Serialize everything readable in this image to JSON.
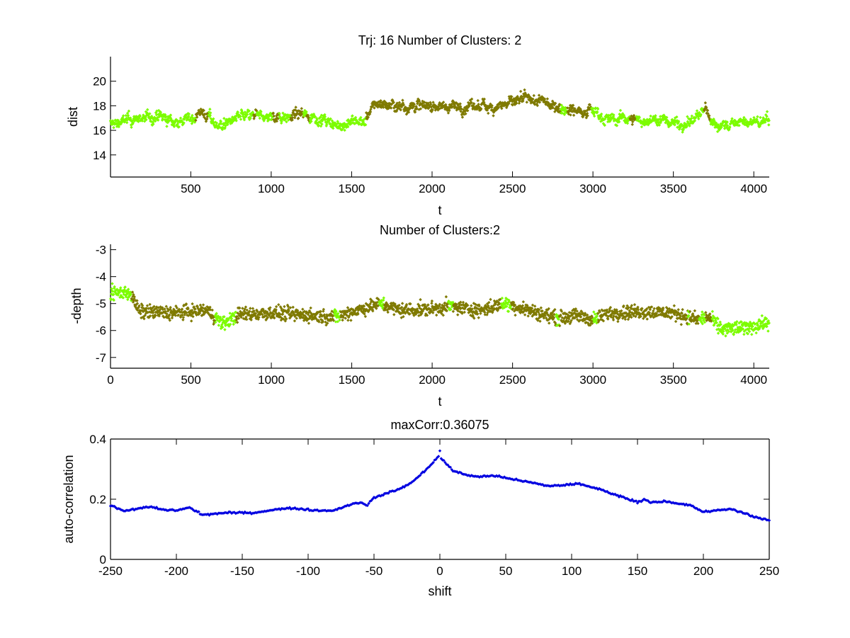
{
  "chart_data": [
    {
      "type": "scatter",
      "title": "Trj: 16 Number of Clusters: 2",
      "xlabel": "t",
      "ylabel": "dist",
      "xlim": [
        1,
        4096
      ],
      "ylim": [
        12.2,
        22
      ],
      "xticks": [
        500,
        1000,
        1500,
        2000,
        2500,
        3000,
        3500,
        4000
      ],
      "yticks": [
        14,
        16,
        18,
        20
      ],
      "grid": false,
      "colors": {
        "cluster1": "#7cfc00",
        "cluster2": "#7f7a00"
      },
      "noise": 0.22,
      "anchors_t": [
        0,
        100,
        200,
        300,
        400,
        500,
        560,
        650,
        700,
        800,
        900,
        1000,
        1100,
        1200,
        1300,
        1400,
        1500,
        1580,
        1650,
        1800,
        2000,
        2200,
        2400,
        2600,
        2700,
        2800,
        2900,
        3000,
        3100,
        3200,
        3300,
        3400,
        3500,
        3600,
        3700,
        3760,
        3900,
        4096
      ],
      "anchors_value": [
        16.5,
        16.8,
        17.0,
        17.1,
        16.7,
        16.9,
        17.6,
        16.6,
        16.4,
        17.1,
        17.1,
        17.1,
        17.2,
        17.3,
        17.0,
        16.3,
        16.7,
        16.7,
        18.2,
        18.0,
        18.0,
        17.9,
        18.0,
        18.5,
        18.3,
        17.9,
        17.6,
        17.7,
        16.8,
        17.0,
        16.8,
        16.9,
        16.6,
        16.6,
        17.7,
        16.4,
        16.6,
        16.7
      ],
      "cluster2_ranges": [
        [
          530,
          610
        ],
        [
          890,
          910
        ],
        [
          1010,
          1050
        ],
        [
          1120,
          1200
        ],
        [
          1220,
          1240
        ],
        [
          1590,
          2800
        ],
        [
          2840,
          2990
        ],
        [
          3230,
          3270
        ],
        [
          3690,
          3730
        ]
      ]
    },
    {
      "type": "scatter",
      "title": "Number of Clusters:2",
      "xlabel": "t",
      "ylabel": "-depth",
      "xlim": [
        0,
        4096
      ],
      "ylim": [
        -7.4,
        -2.8
      ],
      "xticks": [
        0,
        500,
        1000,
        1500,
        2000,
        2500,
        3000,
        3500,
        4000
      ],
      "yticks": [
        -7,
        -6,
        -5,
        -4,
        -3
      ],
      "grid": false,
      "colors": {
        "cluster1": "#7cfc00",
        "cluster2": "#7f7a00"
      },
      "noise": 0.18,
      "anchors_t": [
        0,
        120,
        180,
        400,
        600,
        700,
        800,
        1000,
        1400,
        1500,
        1680,
        1800,
        2000,
        2100,
        2300,
        2450,
        2600,
        2780,
        2900,
        3000,
        3100,
        3300,
        3500,
        3650,
        3720,
        3800,
        3950,
        4096
      ],
      "anchors_value": [
        -4.6,
        -4.6,
        -5.3,
        -5.35,
        -5.25,
        -5.75,
        -5.4,
        -5.35,
        -5.5,
        -5.3,
        -5.0,
        -5.25,
        -5.2,
        -5.1,
        -5.25,
        -5.0,
        -5.25,
        -5.55,
        -5.45,
        -5.6,
        -5.35,
        -5.3,
        -5.35,
        -5.6,
        -5.5,
        -5.95,
        -5.9,
        -5.7
      ],
      "cluster1_ranges": [
        [
          0,
          130
        ],
        [
          650,
          780
        ],
        [
          1390,
          1430
        ],
        [
          1670,
          1700
        ],
        [
          2100,
          2130
        ],
        [
          2430,
          2490
        ],
        [
          2770,
          2790
        ],
        [
          3000,
          3030
        ],
        [
          3590,
          3600
        ],
        [
          3660,
          3700
        ],
        [
          3740,
          4096
        ]
      ]
    },
    {
      "type": "scatter",
      "title": "maxCorr:0.36075",
      "xlabel": "shift",
      "ylabel": "auto-correlation",
      "xlim": [
        -250,
        250
      ],
      "ylim": [
        0,
        0.4
      ],
      "xticks": [
        -250,
        -200,
        -150,
        -100,
        -50,
        0,
        50,
        100,
        150,
        200,
        250
      ],
      "yticks": [
        0,
        0.2,
        0.4
      ],
      "grid": false,
      "color": "#0000e0",
      "max_corr": 0.36075,
      "anchors_shift": [
        -250,
        -240,
        -230,
        -220,
        -210,
        -200,
        -190,
        -180,
        -170,
        -160,
        -150,
        -140,
        -130,
        -120,
        -110,
        -100,
        -90,
        -80,
        -70,
        -60,
        -55,
        -50,
        -40,
        -30,
        -20,
        -10,
        -1,
        0,
        1,
        10,
        20,
        30,
        40,
        50,
        60,
        70,
        80,
        90,
        100,
        105,
        110,
        120,
        130,
        140,
        150,
        155,
        160,
        170,
        180,
        190,
        200,
        210,
        220,
        230,
        240,
        250
      ],
      "anchors_value": [
        0.18,
        0.16,
        0.168,
        0.175,
        0.165,
        0.163,
        0.172,
        0.148,
        0.152,
        0.155,
        0.155,
        0.155,
        0.163,
        0.168,
        0.17,
        0.165,
        0.162,
        0.163,
        0.18,
        0.19,
        0.18,
        0.205,
        0.22,
        0.235,
        0.26,
        0.3,
        0.343,
        0.36075,
        0.335,
        0.295,
        0.28,
        0.275,
        0.278,
        0.272,
        0.262,
        0.255,
        0.245,
        0.245,
        0.25,
        0.252,
        0.245,
        0.235,
        0.22,
        0.205,
        0.19,
        0.2,
        0.19,
        0.193,
        0.185,
        0.18,
        0.158,
        0.162,
        0.168,
        0.155,
        0.14,
        0.13
      ]
    }
  ]
}
